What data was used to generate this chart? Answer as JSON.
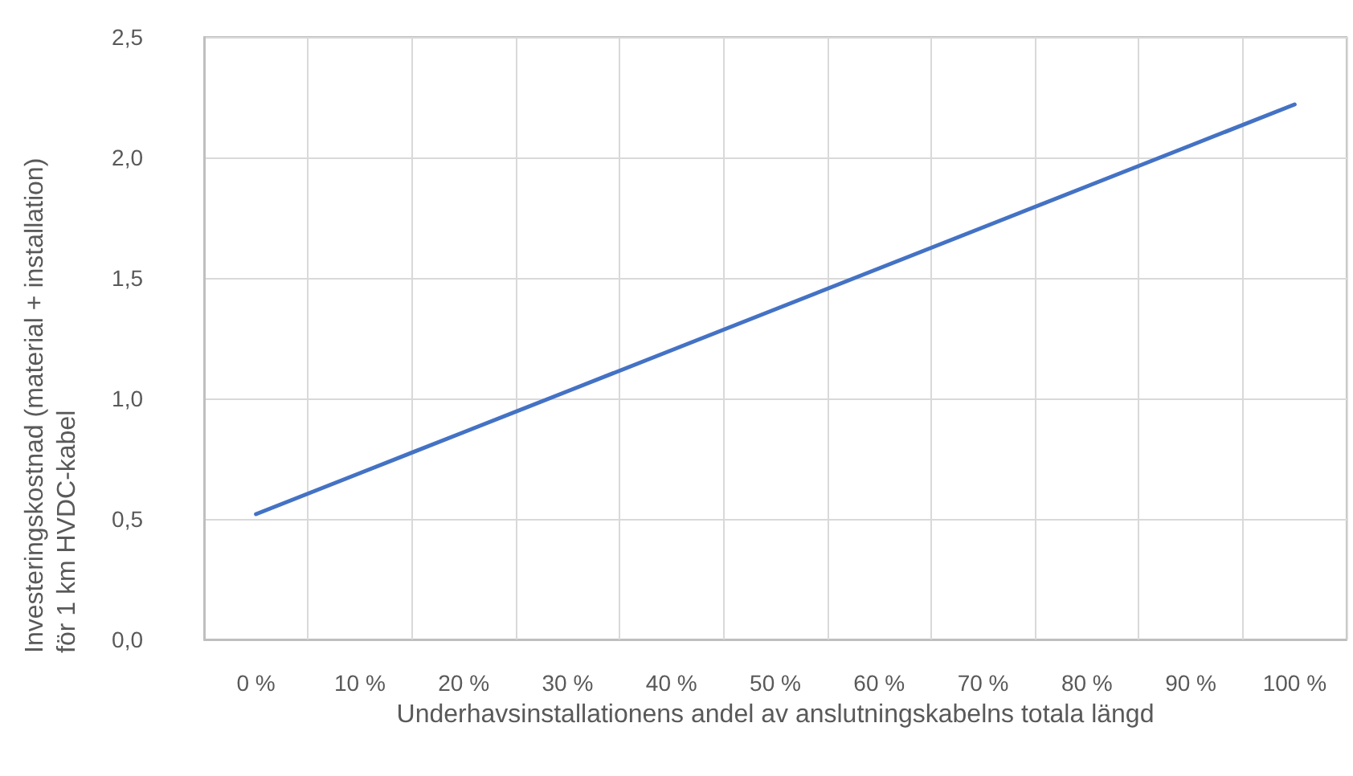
{
  "chart_data": {
    "type": "line",
    "xlabel": "Underhavsinstallationens andel av anslutningskabelns totala längd",
    "ylabel": "Investeringskostnad (material + installation) för 1 km HVDC-kabel",
    "categories": [
      "0 %",
      "10 %",
      "20 %",
      "30 %",
      "40 %",
      "50 %",
      "60 %",
      "70 %",
      "80 %",
      "90 %",
      "100 %"
    ],
    "series": [
      {
        "color": "#4472c4",
        "values": [
          0.52,
          0.69,
          0.86,
          1.03,
          1.2,
          1.37,
          1.54,
          1.71,
          1.88,
          2.05,
          2.22
        ]
      }
    ],
    "ylim": [
      0,
      2.5
    ],
    "yticks": [
      {
        "value": 0,
        "label": "0,0"
      },
      {
        "value": 0.5,
        "label": "0,5"
      },
      {
        "value": 1,
        "label": "1,0"
      },
      {
        "value": 1.5,
        "label": "1,5"
      },
      {
        "value": 2,
        "label": "2,0"
      },
      {
        "value": 2.5,
        "label": "2,5"
      }
    ],
    "grid": true,
    "marker": "none",
    "line_style": "solid"
  }
}
